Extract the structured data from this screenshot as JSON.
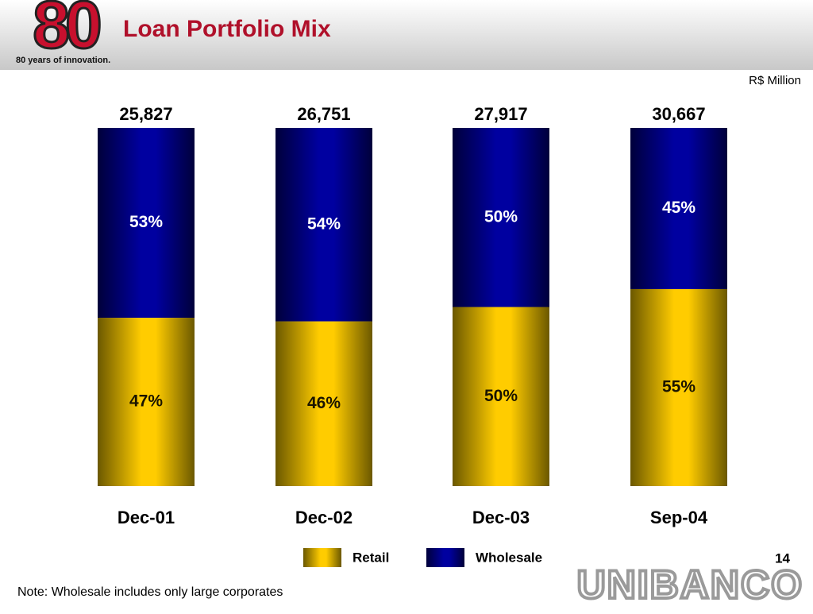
{
  "slide": {
    "logo": "80",
    "tagline": "80 years of innovation.",
    "page_number": 14,
    "brand": "UNIBANCO",
    "note": "Note: Wholesale includes only large corporates"
  },
  "chart_data": {
    "type": "stacked_bar_100",
    "title": "Loan Portfolio Mix",
    "unit": "R$ Million",
    "categories": [
      "Dec-01",
      "Dec-02",
      "Dec-03",
      "Sep-04"
    ],
    "totals": {
      "values": [
        25827,
        26751,
        27917,
        30667
      ],
      "value_labels": [
        "25,827",
        "26,751",
        "27,917",
        "30,667"
      ]
    },
    "series": [
      {
        "name": "Retail",
        "color": "#ffcc00",
        "values": [
          47,
          46,
          50,
          55
        ],
        "value_labels": [
          "47%",
          "46%",
          "50%",
          "55%"
        ]
      },
      {
        "name": "Wholesale",
        "color": "#0000a0",
        "values": [
          53,
          54,
          50,
          45
        ],
        "value_labels": [
          "53%",
          "54%",
          "50%",
          "45%"
        ]
      }
    ]
  }
}
